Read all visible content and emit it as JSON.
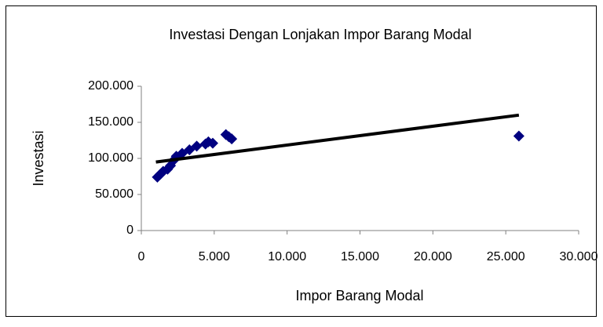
{
  "chart_data": {
    "type": "scatter",
    "title": "Investasi Dengan Lonjakan Impor Barang Modal",
    "xlabel": "Impor Barang Modal",
    "ylabel": "Investasi",
    "xlim": [
      0,
      30000
    ],
    "ylim": [
      0,
      200000
    ],
    "xticks": [
      0,
      {
        "value": 5000,
        "label": "5.000"
      },
      {
        "value": 10000,
        "label": "10.000"
      },
      {
        "value": 15000,
        "label": "15.000"
      },
      {
        "value": 20000,
        "label": "20.000"
      },
      {
        "value": 25000,
        "label": "25.000"
      },
      {
        "value": 30000,
        "label": "30.000"
      }
    ],
    "yticks": [
      0,
      {
        "value": 50000,
        "label": "50.000"
      },
      {
        "value": 100000,
        "label": "100.000"
      },
      {
        "value": 150000,
        "label": "150.000"
      },
      {
        "value": 200000,
        "label": "200.000"
      }
    ],
    "series": [
      {
        "color": "#000080",
        "x": [
          1100,
          1300,
          1500,
          1800,
          2000,
          2200,
          2400,
          2800,
          3300,
          3800,
          4400,
          4600,
          4900,
          5800,
          6000,
          6200,
          25900
        ],
        "values": [
          74000,
          78000,
          82000,
          85000,
          90000,
          97000,
          103000,
          107000,
          112000,
          117000,
          120000,
          123000,
          121000,
          133000,
          130000,
          127000,
          131000
        ]
      }
    ],
    "trendline": {
      "color": "#000000",
      "x": [
        1000,
        25900
      ],
      "values": [
        95000,
        160000
      ]
    }
  }
}
